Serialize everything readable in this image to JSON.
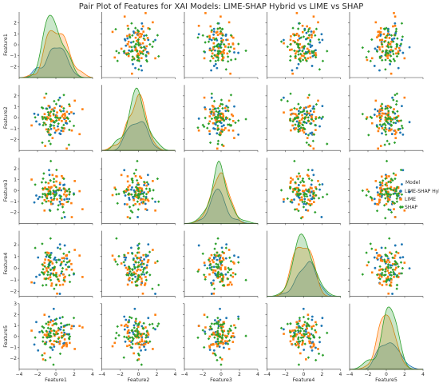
{
  "chart_data": {
    "type": "scatter",
    "title": "Pair Plot of Features for XAI Models: LIME-SHAP Hybrid vs LIME vs SHAP",
    "features": [
      "Feature1",
      "Feature2",
      "Feature3",
      "Feature4",
      "Feature5"
    ],
    "diagonal": "kde",
    "off_diagonal": "scatter",
    "xlim": [
      -4,
      4
    ],
    "x_ticks": [
      -4,
      -2,
      0,
      2,
      4
    ],
    "row_limits": [
      {
        "feature": "Feature1",
        "ylim": [
          -3,
          3
        ],
        "ticks": [
          -2,
          -1,
          0,
          1,
          2
        ]
      },
      {
        "feature": "Feature2",
        "ylim": [
          -3,
          3
        ],
        "ticks": [
          -2,
          -1,
          0,
          1,
          2
        ]
      },
      {
        "feature": "Feature3",
        "ylim": [
          -3,
          3
        ],
        "ticks": [
          -2,
          -1,
          0,
          1,
          2
        ]
      },
      {
        "feature": "Feature4",
        "ylim": [
          -2.4,
          3.2
        ],
        "ticks": [
          -2,
          -1,
          0,
          1,
          2
        ]
      },
      {
        "feature": "Feature5",
        "ylim": [
          -3,
          3
        ],
        "ticks": [
          -2,
          -1,
          0,
          1,
          2,
          3
        ]
      }
    ],
    "legend": {
      "title": "Model",
      "placement": "right"
    },
    "series": [
      {
        "name": "LIME-SHAP Hybrid",
        "color": "#1f77b4",
        "marker": "circle",
        "n": 30
      },
      {
        "name": "LIME",
        "color": "#ff7f0e",
        "marker": "square",
        "n": 50
      },
      {
        "name": "SHAP",
        "color": "#2ca02c",
        "marker": "diamond",
        "n": 55
      }
    ]
  }
}
